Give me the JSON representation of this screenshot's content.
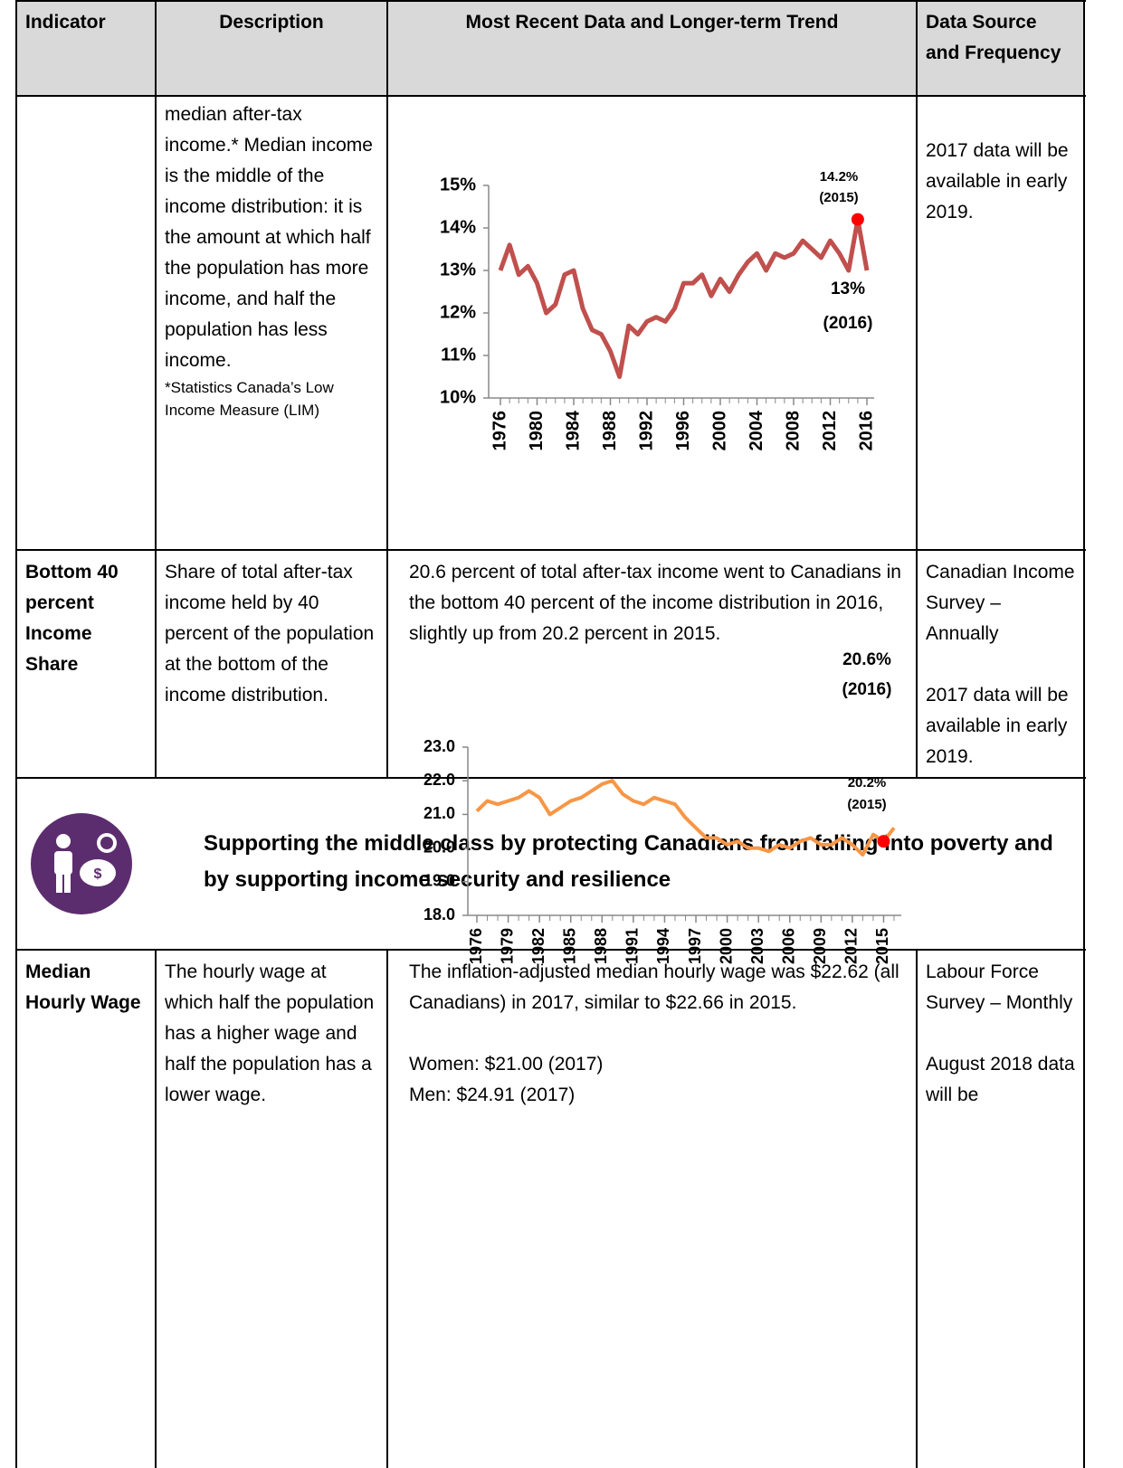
{
  "table": {
    "header": [
      "Indicator",
      "Description",
      "Most Recent Data and Longer-term Trend",
      "Data Source and Frequency"
    ],
    "rows": [
      {
        "description": "median after-tax income.* Median income is the middle of the income distribution: it is the amount at which half the population has more income, and half the population has less income.",
        "footnote": "*Statistics Canada’s Low Income Measure (LIM)",
        "source": [
          "2017 data will be available in early 2019."
        ]
      },
      {
        "indicator": "Bottom 40 percent Income Share",
        "description": "Share of total after-tax income held by 40 percent of the population at the bottom of the income distribution.",
        "summary": [
          "20.6 percent of total after-tax income went to Canadians in the bottom 40 percent of the income distribution in 2016, slightly up from 20.2 percent in 2015."
        ],
        "source": [
          "Canadian Income Survey – Annually",
          "2017 data will be available in early 2019."
        ]
      },
      {
        "section": "Supporting the middle class by protecting Canadians from falling into poverty and by supporting income security and resilience"
      },
      {
        "indicator": "Median Hourly Wage",
        "description": "The hourly wage at which half the population has a higher wage and half the population has a lower wage.",
        "summary": [
          "The inflation-adjusted median hourly wage was $22.62 (all Canadians) in 2017, similar to $22.66 in 2015.",
          "Women: $21.00 (2017)",
          "Men: $24.91 (2017)"
        ],
        "source": [
          "Labour Force Survey – Monthly",
          "August 2018 data will be"
        ]
      }
    ]
  },
  "chart_data": [
    {
      "type": "line",
      "color": "#c0504d",
      "x": [
        1976,
        1977,
        1978,
        1979,
        1980,
        1981,
        1982,
        1983,
        1984,
        1985,
        1986,
        1987,
        1988,
        1989,
        1990,
        1991,
        1992,
        1993,
        1994,
        1995,
        1996,
        1997,
        1998,
        1999,
        2000,
        2001,
        2002,
        2003,
        2004,
        2005,
        2006,
        2007,
        2008,
        2009,
        2010,
        2011,
        2012,
        2013,
        2014,
        2015,
        2016
      ],
      "values": [
        13.0,
        13.6,
        12.9,
        13.1,
        12.7,
        12.0,
        12.2,
        12.9,
        13.0,
        12.1,
        11.6,
        11.5,
        11.1,
        10.5,
        11.7,
        11.5,
        11.8,
        11.9,
        11.8,
        12.1,
        12.7,
        12.7,
        12.9,
        12.4,
        12.8,
        12.5,
        12.9,
        13.2,
        13.4,
        13.0,
        13.4,
        13.3,
        13.4,
        13.7,
        13.5,
        13.3,
        13.7,
        13.4,
        13.0,
        14.2,
        13.0
      ],
      "xlim": [
        1976,
        2016
      ],
      "xticks": [
        1976,
        1980,
        1984,
        1988,
        1992,
        1996,
        2000,
        2004,
        2008,
        2012,
        2016
      ],
      "ylim": [
        10,
        15
      ],
      "yticks": [
        {
          "value": 10,
          "label": "10%"
        },
        {
          "value": 11,
          "label": "11%"
        },
        {
          "value": 12,
          "label": "12%"
        },
        {
          "value": 13,
          "label": "13%"
        },
        {
          "value": 14,
          "label": "14%"
        },
        {
          "value": 15,
          "label": "15%"
        }
      ],
      "highlight": {
        "x": 2015,
        "color": "#ff0000"
      },
      "annotations": [
        [
          "14.2%",
          "(2015)"
        ],
        [
          "13%",
          "(2016)"
        ]
      ]
    },
    {
      "type": "line",
      "color": "#f79646",
      "x": [
        1976,
        1977,
        1978,
        1979,
        1980,
        1981,
        1982,
        1983,
        1984,
        1985,
        1986,
        1987,
        1988,
        1989,
        1990,
        1991,
        1992,
        1993,
        1994,
        1995,
        1996,
        1997,
        1998,
        1999,
        2000,
        2001,
        2002,
        2003,
        2004,
        2005,
        2006,
        2007,
        2008,
        2009,
        2010,
        2011,
        2012,
        2013,
        2014,
        2015,
        2016
      ],
      "values": [
        21.1,
        21.4,
        21.3,
        21.4,
        21.5,
        21.7,
        21.5,
        21.0,
        21.2,
        21.4,
        21.5,
        21.7,
        21.9,
        22.0,
        21.6,
        21.4,
        21.3,
        21.5,
        21.4,
        21.3,
        20.9,
        20.6,
        20.3,
        20.3,
        20.1,
        20.2,
        20.0,
        20.0,
        19.9,
        20.1,
        20.0,
        20.2,
        20.3,
        20.1,
        20.1,
        20.3,
        20.1,
        19.8,
        20.4,
        20.2,
        20.6
      ],
      "xlim": [
        1976,
        2016
      ],
      "xticks": [
        1976,
        1979,
        1982,
        1985,
        1988,
        1991,
        1994,
        1997,
        2000,
        2003,
        2006,
        2009,
        2012,
        2015
      ],
      "ylim": [
        18,
        23
      ],
      "yticks": [
        {
          "value": 18,
          "label": "18.0"
        },
        {
          "value": 19,
          "label": "19.0"
        },
        {
          "value": 20,
          "label": "20.0"
        },
        {
          "value": 21,
          "label": "21.0"
        },
        {
          "value": 22,
          "label": "22.0"
        },
        {
          "value": 23,
          "label": "23.0"
        }
      ],
      "highlight": {
        "x": 2015,
        "color": "#ff0000"
      },
      "annotations": [
        [
          "20.6%",
          "(2016)"
        ],
        [
          "20.2%",
          "(2015)"
        ]
      ]
    }
  ]
}
